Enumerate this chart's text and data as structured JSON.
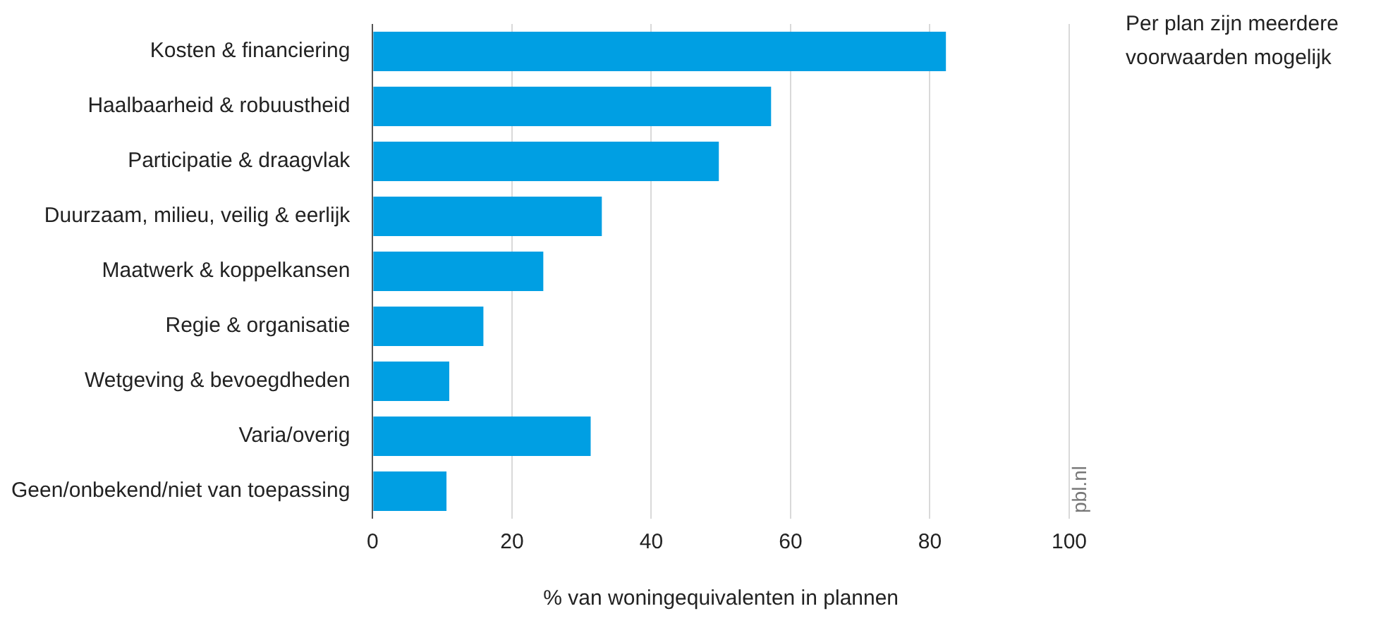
{
  "chart_data": {
    "type": "bar",
    "orientation": "horizontal",
    "xlabel": "% van woningequivalenten in plannen",
    "categories": [
      "Kosten & financiering",
      "Haalbaarheid & robuustheid",
      "Participatie & draagvlak",
      "Duurzaam, milieu, veilig & eerlijk",
      "Maatwerk & koppelkansen",
      "Regie & organisatie",
      "Wetgeving & bevoegdheden",
      "Varia/overig",
      "Geen/onbekend/niet van toepassing"
    ],
    "values": [
      82.3,
      57.2,
      49.7,
      32.9,
      24.5,
      15.9,
      11.0,
      31.3,
      10.6
    ],
    "color": "#009fe3",
    "xlim": [
      0,
      100
    ],
    "xticks": [
      0,
      20,
      40,
      60,
      80,
      100
    ],
    "grid": "x",
    "annotations": [
      "Per plan zijn meerdere voorwaarden mogelijk",
      "pbl.nl"
    ]
  }
}
